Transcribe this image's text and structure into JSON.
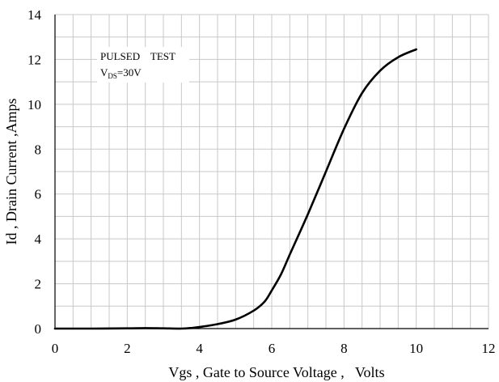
{
  "chart_data": {
    "type": "line",
    "xlabel": "Vgs , Gate to Source Voltage ,   Volts",
    "ylabel": "Id , Drain Current ,Amps",
    "xlim": [
      0,
      12
    ],
    "ylim": [
      0,
      14
    ],
    "xticks": [
      "0",
      "2",
      "4",
      "6",
      "8",
      "10",
      "12"
    ],
    "yticks": [
      "0",
      "2",
      "4",
      "6",
      "8",
      "10",
      "12",
      "14"
    ],
    "grid": true,
    "annotation": {
      "line1": "PULSED    TEST",
      "line2_prefix": "V",
      "line2_sub": "DS",
      "line2_rest": "=30V"
    },
    "series": [
      {
        "x": [
          0,
          1,
          2,
          2.5,
          3,
          3.5,
          3.8,
          4,
          4.5,
          5,
          5.5,
          5.8,
          6,
          6.25,
          6.5,
          7,
          7.5,
          8,
          8.5,
          9,
          9.5,
          10
        ],
        "y": [
          0,
          0,
          0.01,
          0.02,
          0.01,
          0,
          0.03,
          0.07,
          0.2,
          0.4,
          0.8,
          1.2,
          1.7,
          2.4,
          3.3,
          5.1,
          7.0,
          8.9,
          10.5,
          11.5,
          12.1,
          12.45
        ]
      }
    ],
    "colors": {
      "line": "#000000",
      "grid": "#c8c8c8",
      "axis": "#000000"
    }
  }
}
